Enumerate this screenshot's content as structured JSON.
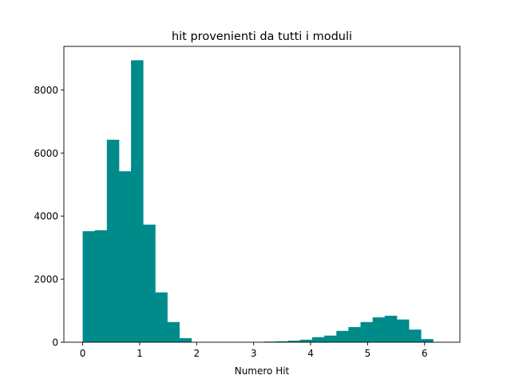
{
  "chart_data": {
    "type": "bar",
    "title": "hit provenienti da tutti i moduli",
    "xlabel": "Numero Hit",
    "ylabel": "",
    "xlim": [
      -0.33,
      6.62
    ],
    "ylim": [
      0,
      9380
    ],
    "xticks": [
      0,
      1,
      2,
      3,
      4,
      5,
      6
    ],
    "yticks": [
      0,
      2000,
      4000,
      6000,
      8000
    ],
    "grid": false,
    "bar_color": "#008b8b",
    "bin_edges": [
      0.0,
      0.212,
      0.424,
      0.636,
      0.848,
      1.06,
      1.272,
      1.484,
      1.696,
      1.908,
      2.12,
      2.332,
      2.544,
      2.756,
      2.968,
      3.18,
      3.392,
      3.604,
      3.816,
      4.028,
      4.24,
      4.452,
      4.664,
      4.876,
      5.088,
      5.3,
      5.512,
      5.724,
      5.936,
      6.148,
      6.36
    ],
    "values": [
      3520,
      3550,
      6420,
      5420,
      8940,
      3730,
      1580,
      640,
      130,
      0,
      0,
      0,
      0,
      0,
      0,
      20,
      30,
      50,
      80,
      160,
      210,
      360,
      480,
      640,
      790,
      840,
      720,
      400,
      100,
      0
    ]
  }
}
